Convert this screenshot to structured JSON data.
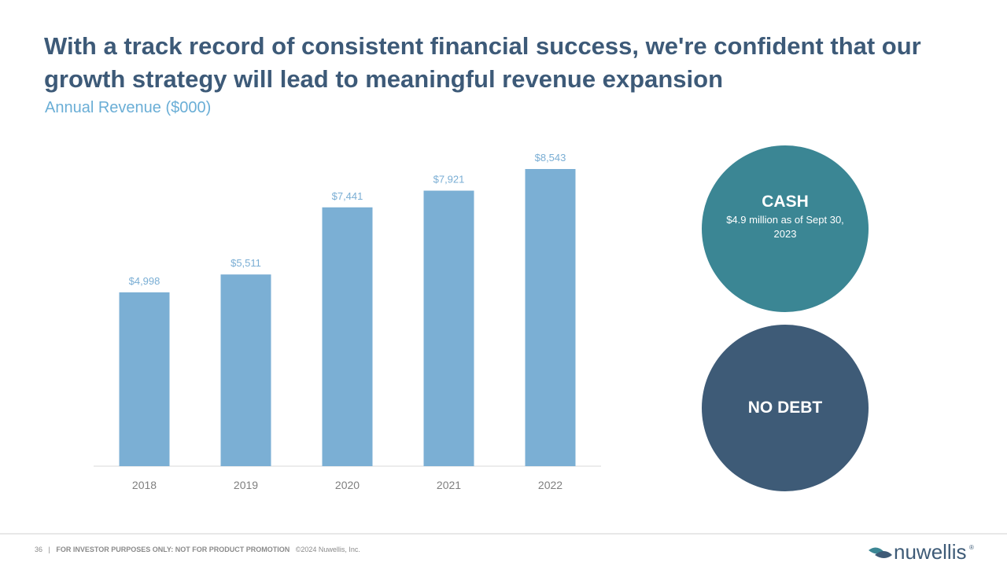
{
  "title": "With a track record of consistent financial success, we're confident that our growth strategy will lead to meaningful revenue expansion",
  "chart_data": {
    "type": "bar",
    "title": "Annual Revenue ($000)",
    "categories": [
      "2018",
      "2019",
      "2020",
      "2021",
      "2022"
    ],
    "values": [
      4998,
      5511,
      7441,
      7921,
      8543
    ],
    "value_labels": [
      "$4,998",
      "$5,511",
      "$7,441",
      "$7,921",
      "$8,543"
    ],
    "color": "#7bafd4"
  },
  "cash": {
    "title": "CASH",
    "text": "$4.9 million as of Sept 30, 2023"
  },
  "debt": {
    "title": "NO DEBT"
  },
  "footer": {
    "page": "36",
    "separator": "|",
    "notice": "FOR INVESTOR PURPOSES ONLY: NOT FOR PRODUCT PROMOTION",
    "copyright": "©2024 Nuwellis, Inc."
  },
  "logo": {
    "name": "nuwellis",
    "mark": "®"
  }
}
